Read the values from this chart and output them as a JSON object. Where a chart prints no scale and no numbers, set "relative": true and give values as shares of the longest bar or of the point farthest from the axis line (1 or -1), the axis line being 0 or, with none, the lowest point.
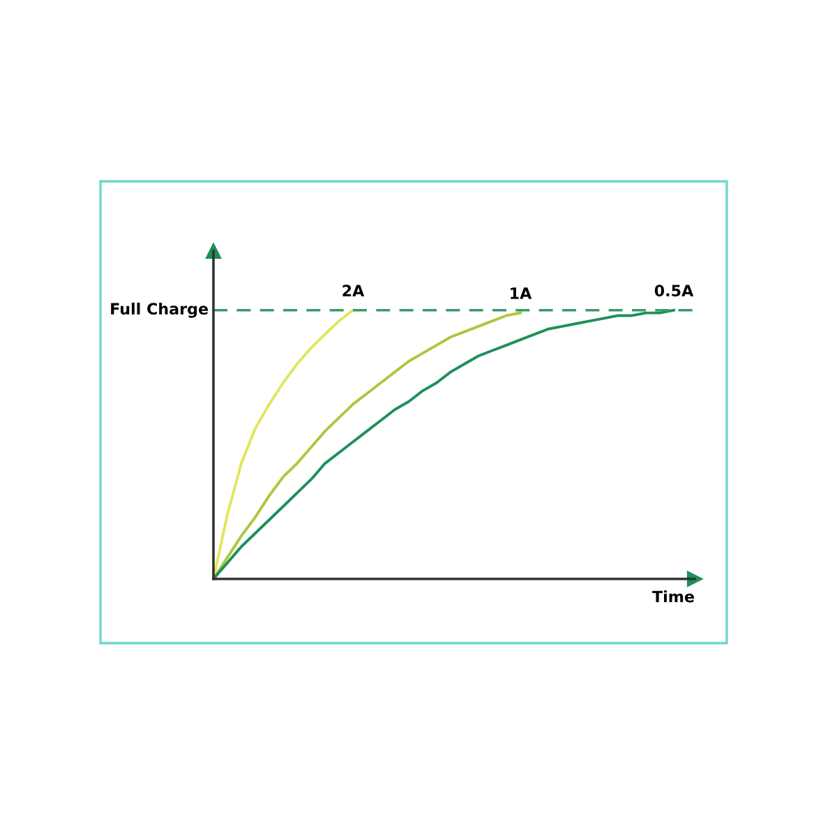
{
  "chart_data": {
    "type": "line",
    "relative": true,
    "xlabel": "Time",
    "categories": [
      null,
      null,
      null,
      null,
      null,
      null,
      null,
      null,
      null,
      null,
      null,
      null,
      null,
      null,
      null,
      null,
      null,
      null,
      null,
      null,
      null,
      null,
      null,
      null,
      null,
      null,
      null,
      null,
      null,
      null,
      null,
      null,
      null,
      null
    ],
    "series": [
      {
        "name": "2A",
        "color": "#e2e65a",
        "values": [
          0,
          0.24,
          0.43,
          0.56,
          0.65,
          0.73,
          0.8,
          0.86,
          0.91,
          0.96,
          1.0,
          null,
          null,
          null,
          null,
          null,
          null,
          null,
          null,
          null,
          null,
          null,
          null,
          null,
          null,
          null,
          null,
          null,
          null,
          null,
          null,
          null,
          null,
          null
        ]
      },
      {
        "name": "1A",
        "color": "#a9c93c",
        "values": [
          0,
          0.08,
          0.16,
          0.23,
          0.31,
          0.38,
          0.43,
          0.49,
          0.55,
          0.6,
          0.65,
          0.69,
          0.73,
          0.77,
          0.81,
          0.84,
          0.87,
          0.9,
          0.92,
          0.94,
          0.96,
          0.98,
          0.99,
          null,
          null,
          null,
          null,
          null,
          null,
          null,
          null,
          null,
          null,
          null
        ]
      },
      {
        "name": "0.5A",
        "color": "#1f8f5a",
        "values": [
          0,
          0.06,
          0.12,
          0.17,
          0.22,
          0.27,
          0.32,
          0.37,
          0.43,
          0.47,
          0.51,
          0.55,
          0.59,
          0.63,
          0.66,
          0.7,
          0.73,
          0.77,
          0.8,
          0.83,
          0.85,
          0.87,
          0.89,
          0.91,
          0.93,
          0.94,
          0.95,
          0.96,
          0.97,
          0.98,
          0.98,
          0.99,
          0.99,
          1.0
        ]
      }
    ],
    "ref_lines": [
      {
        "axis": "y",
        "value": 1,
        "label": "Full Charge",
        "color": "#3a9a6a",
        "line_style": "dashed"
      }
    ]
  }
}
